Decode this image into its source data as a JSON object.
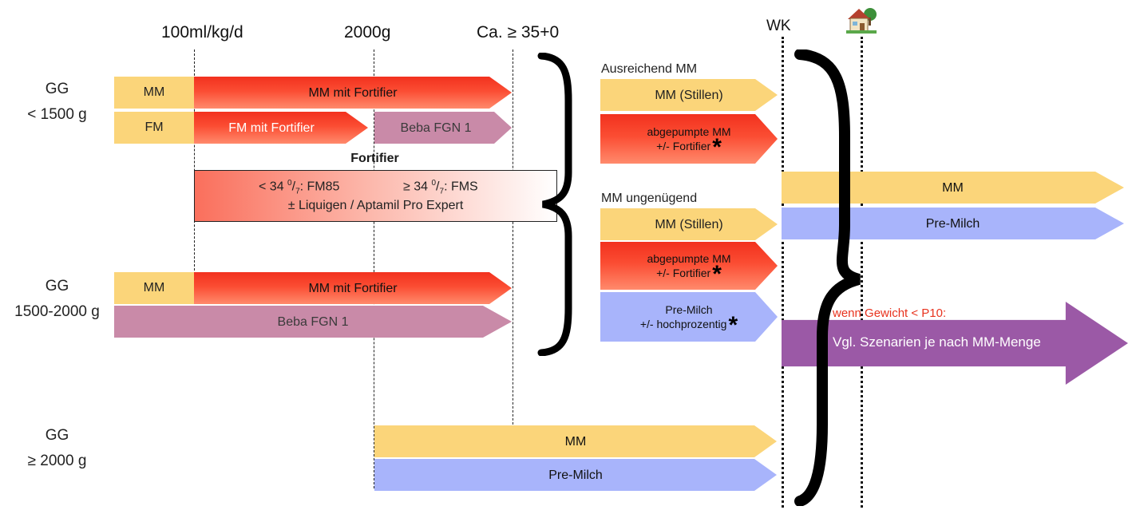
{
  "headers": {
    "flow_rate": "100ml/kg/d",
    "weight_2000": "2000g",
    "ga_35": "Ca. ≥ 35+0",
    "wk": "WK"
  },
  "icons": {
    "home": "house-icon",
    "brace": "curly-brace",
    "star": "asterisk"
  },
  "rows": {
    "under_1500": {
      "line1": "GG",
      "line2": "< 1500 g"
    },
    "mid": {
      "line1": "GG",
      "line2": "1500-2000 g"
    },
    "over_2000": {
      "line1": "GG",
      "line2": "≥ 2000 g"
    }
  },
  "row1": {
    "mm": "MM",
    "mm_fortifier": "MM mit Fortifier",
    "fm": "FM",
    "fm_fortifier": "FM mit Fortifier",
    "beba": "Beba FGN 1"
  },
  "fortifier": {
    "title": "Fortifier",
    "lt34": "< 34",
    "lt34_sup": "0",
    "lt34_sub": "7",
    "lt34_name": ": FM85",
    "ge34": "≥ 34",
    "ge34_sup": "0",
    "ge34_sub": "7",
    "ge34_name": ": FMS",
    "extra": "± Liquigen / Aptamil Pro Expert"
  },
  "row2": {
    "mm": "MM",
    "mm_fortifier": "MM mit Fortifier",
    "beba": "Beba FGN 1"
  },
  "row3": {
    "mm": "MM",
    "pre": "Pre-Milch"
  },
  "scenario_a": {
    "title": "Ausreichend MM",
    "stillen": "MM (Stillen)",
    "pumped_l1": "abgepumpte MM",
    "pumped_l2": "+/- Fortifier"
  },
  "scenario_b": {
    "title": "MM ungenügend",
    "stillen": "MM (Stillen)",
    "pumped_l1": "abgepumpte MM",
    "pumped_l2": "+/- Fortifier",
    "pre_l1": "Pre-Milch",
    "pre_l2": "+/- hochprozentig"
  },
  "right": {
    "mm": "MM",
    "pre": "Pre-Milch",
    "warning": "wenn Gewicht < P10:",
    "scenario": "Vgl. Szenarien je nach MM-Menge"
  },
  "colors": {
    "yellow": "#fbd57a",
    "red": "#f2311e",
    "mauve": "#c98aa8",
    "blue": "#a8b4fb",
    "purple": "#9b59a6",
    "warning": "#e8321e"
  }
}
